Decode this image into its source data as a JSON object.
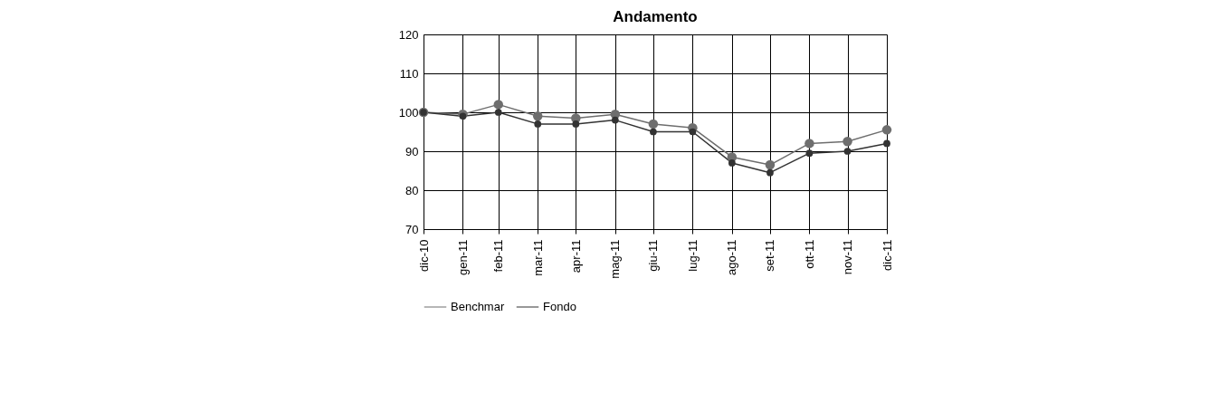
{
  "chart_data": {
    "type": "line",
    "title": "Andamento",
    "x": [
      "2010-12-31",
      "2011-01-31",
      "2011-02-28",
      "2011-03-31",
      "2011-04-30",
      "2011-05-31",
      "2011-06-30",
      "2011-07-31",
      "2011-08-31",
      "2011-09-30",
      "2011-10-31",
      "2011-11-30",
      "2011-12-31"
    ],
    "xticks": [
      {
        "value": "2010-12-31",
        "label": "dic-10"
      },
      {
        "value": "2011-01-31",
        "label": "gen-11"
      },
      {
        "value": "2011-02-28",
        "label": "feb-11"
      },
      {
        "value": "2011-03-31",
        "label": "mar-11"
      },
      {
        "value": "2011-04-30",
        "label": "apr-11"
      },
      {
        "value": "2011-05-31",
        "label": "mag-11"
      },
      {
        "value": "2011-06-30",
        "label": "giu-11"
      },
      {
        "value": "2011-07-31",
        "label": "lug-11"
      },
      {
        "value": "2011-08-31",
        "label": "ago-11"
      },
      {
        "value": "2011-09-30",
        "label": "set-11"
      },
      {
        "value": "2011-10-31",
        "label": "ott-11"
      },
      {
        "value": "2011-11-30",
        "label": "nov-11"
      },
      {
        "value": "2011-12-31",
        "label": "dic-11"
      }
    ],
    "xlim": [
      "2010-12-31",
      "2011-12-31"
    ],
    "series": [
      {
        "name": "Benchmar",
        "color": "#6e6e6e",
        "values": [
          100,
          99.5,
          102,
          99,
          98.5,
          99.5,
          97,
          96,
          88.5,
          86.5,
          92,
          92.5,
          95.5
        ]
      },
      {
        "name": "Fondo",
        "color": "#333333",
        "values": [
          100,
          99,
          100,
          97,
          97,
          98,
          95,
          95,
          87,
          84.5,
          89.5,
          90,
          92
        ]
      }
    ],
    "ylim": [
      70,
      120
    ],
    "yticks": [
      70,
      80,
      90,
      100,
      110,
      120
    ],
    "grid": true,
    "legend": "bottom",
    "marker": "circle",
    "line_style": "solid"
  }
}
